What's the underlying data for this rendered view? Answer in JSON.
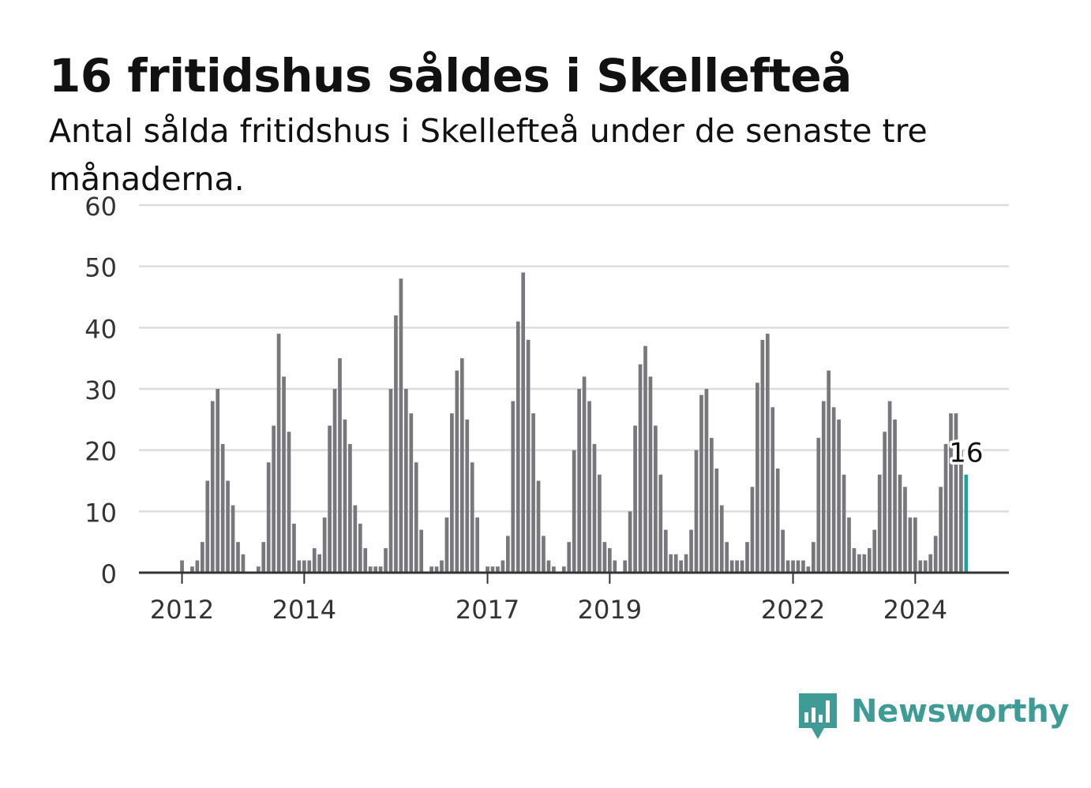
{
  "page": {
    "title": "16 fritidshus såldes i Skellefteå",
    "subtitle": "Antal sålda fritidshus i Skellefteå under de senaste tre månaderna."
  },
  "brand": {
    "name": "Newsworthy",
    "icon": "newsworthy-logo-icon",
    "color": "#3e9b95"
  },
  "colors": {
    "bar": "#77777c",
    "highlight": "#1aa39a",
    "grid": "#dddddd",
    "axis": "#333333"
  },
  "chart_data": {
    "type": "bar",
    "title": "16 fritidshus såldes i Skellefteå",
    "subtitle": "Antal sålda fritidshus i Skellefteå under de senaste tre månaderna.",
    "xlabel": "",
    "ylabel": "",
    "ylim": [
      0,
      60
    ],
    "yticks": [
      0,
      10,
      20,
      30,
      40,
      50,
      60
    ],
    "xticks": [
      "2012",
      "2014",
      "2017",
      "2019",
      "2022",
      "2024"
    ],
    "grid": true,
    "legend": "none",
    "start": "2011-05",
    "frequency": "monthly",
    "values": [
      0,
      0,
      0,
      0,
      0,
      0,
      0,
      0,
      2,
      0,
      1,
      2,
      5,
      15,
      28,
      30,
      21,
      15,
      11,
      5,
      3,
      0,
      0,
      1,
      5,
      18,
      24,
      39,
      32,
      23,
      8,
      2,
      2,
      2,
      4,
      3,
      9,
      24,
      30,
      35,
      25,
      21,
      11,
      8,
      4,
      1,
      1,
      1,
      4,
      30,
      42,
      48,
      30,
      26,
      18,
      7,
      0,
      1,
      1,
      2,
      9,
      26,
      33,
      35,
      25,
      18,
      9,
      0,
      1,
      1,
      1,
      2,
      6,
      28,
      41,
      49,
      38,
      26,
      15,
      6,
      2,
      1,
      0,
      1,
      5,
      20,
      30,
      32,
      28,
      21,
      16,
      5,
      4,
      2,
      0,
      2,
      10,
      24,
      34,
      37,
      32,
      24,
      16,
      7,
      3,
      3,
      2,
      3,
      7,
      20,
      29,
      30,
      22,
      17,
      11,
      5,
      2,
      2,
      2,
      5,
      14,
      31,
      38,
      39,
      27,
      17,
      7,
      2,
      2,
      2,
      2,
      1,
      5,
      22,
      28,
      33,
      27,
      25,
      16,
      9,
      4,
      3,
      3,
      4,
      7,
      16,
      23,
      28,
      25,
      16,
      14,
      9,
      9,
      2,
      2,
      3,
      6,
      14,
      21,
      26,
      26,
      20,
      16
    ],
    "highlight": {
      "label": "16",
      "value": 16,
      "position": "last"
    }
  }
}
